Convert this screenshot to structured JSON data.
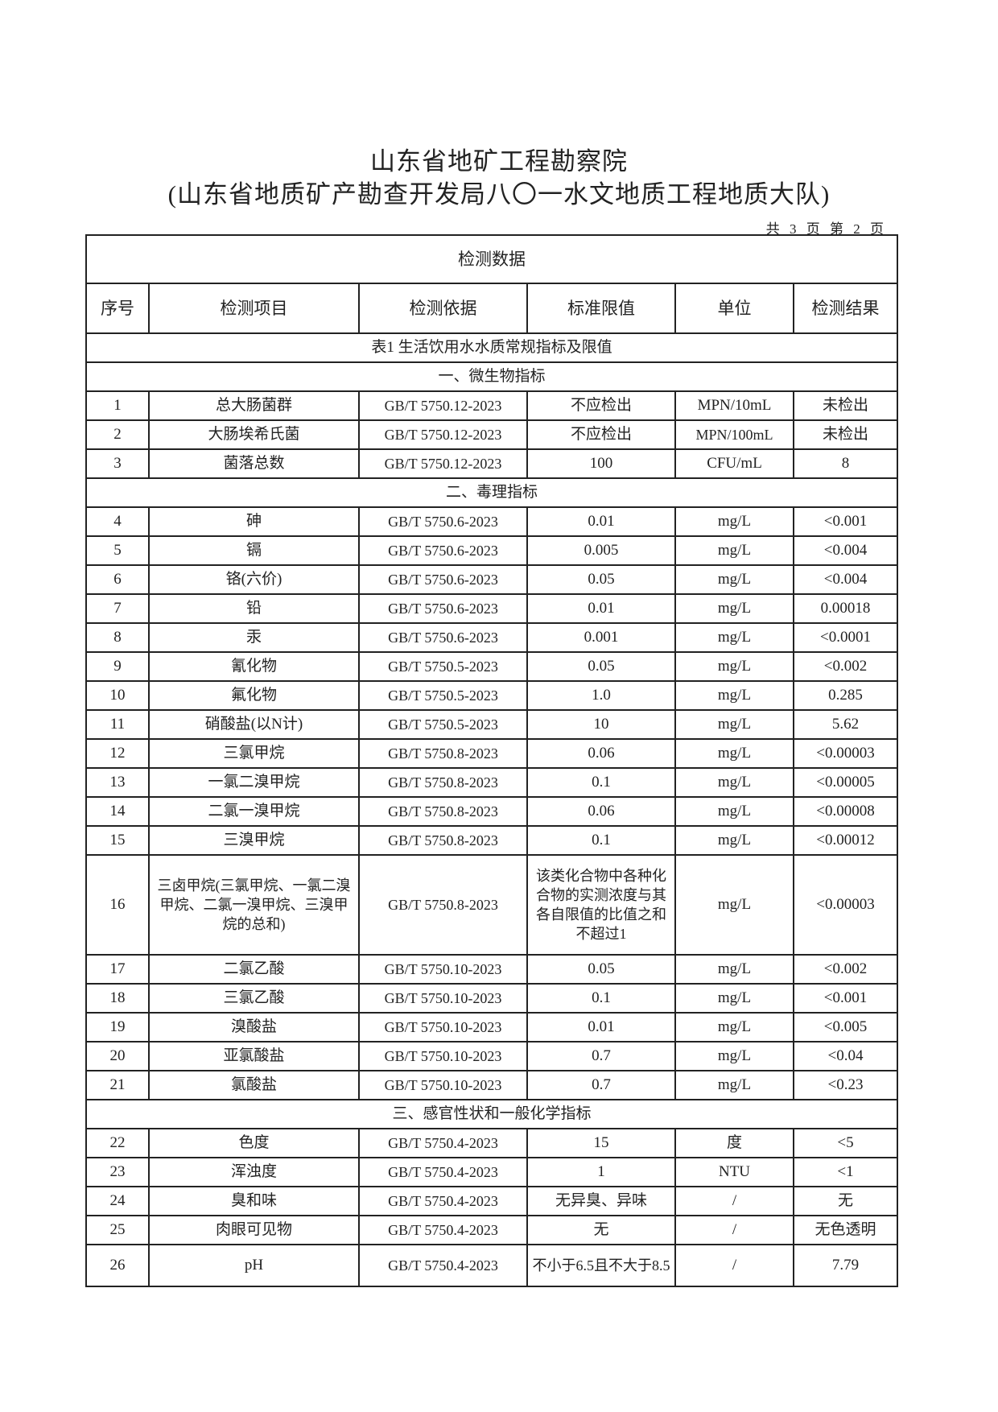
{
  "header": {
    "title": "山东省地矿工程勘察院",
    "subtitle": "(山东省地质矿产勘查开发局八〇一水文地质工程地质大队)",
    "page_info": "共 3 页 第 2 页"
  },
  "table": {
    "caption": "检测数据",
    "columns": [
      "序号",
      "检测项目",
      "检测依据",
      "标准限值",
      "单位",
      "检测结果"
    ],
    "table_title": "表1 生活饮用水水质常规指标及限值",
    "sections": [
      {
        "title": "一、微生物指标",
        "rows": [
          [
            "1",
            "总大肠菌群",
            "GB/T 5750.12-2023",
            "不应检出",
            "MPN/10mL",
            "未检出"
          ],
          [
            "2",
            "大肠埃希氏菌",
            "GB/T 5750.12-2023",
            "不应检出",
            "MPN/100mL",
            "未检出"
          ],
          [
            "3",
            "菌落总数",
            "GB/T 5750.12-2023",
            "100",
            "CFU/mL",
            "8"
          ]
        ]
      },
      {
        "title": "二、毒理指标",
        "rows": [
          [
            "4",
            "砷",
            "GB/T 5750.6-2023",
            "0.01",
            "mg/L",
            "<0.001"
          ],
          [
            "5",
            "镉",
            "GB/T 5750.6-2023",
            "0.005",
            "mg/L",
            "<0.004"
          ],
          [
            "6",
            "铬(六价)",
            "GB/T 5750.6-2023",
            "0.05",
            "mg/L",
            "<0.004"
          ],
          [
            "7",
            "铅",
            "GB/T 5750.6-2023",
            "0.01",
            "mg/L",
            "0.00018"
          ],
          [
            "8",
            "汞",
            "GB/T 5750.6-2023",
            "0.001",
            "mg/L",
            "<0.0001"
          ],
          [
            "9",
            "氰化物",
            "GB/T 5750.5-2023",
            "0.05",
            "mg/L",
            "<0.002"
          ],
          [
            "10",
            "氟化物",
            "GB/T 5750.5-2023",
            "1.0",
            "mg/L",
            "0.285"
          ],
          [
            "11",
            "硝酸盐(以N计)",
            "GB/T 5750.5-2023",
            "10",
            "mg/L",
            "5.62"
          ],
          [
            "12",
            "三氯甲烷",
            "GB/T 5750.8-2023",
            "0.06",
            "mg/L",
            "<0.00003"
          ],
          [
            "13",
            "一氯二溴甲烷",
            "GB/T 5750.8-2023",
            "0.1",
            "mg/L",
            "<0.00005"
          ],
          [
            "14",
            "二氯一溴甲烷",
            "GB/T 5750.8-2023",
            "0.06",
            "mg/L",
            "<0.00008"
          ],
          [
            "15",
            "三溴甲烷",
            "GB/T 5750.8-2023",
            "0.1",
            "mg/L",
            "<0.00012"
          ],
          [
            "16",
            "三卤甲烷(三氯甲烷、一氯二溴甲烷、二氯一溴甲烷、三溴甲烷的总和)",
            "GB/T 5750.8-2023",
            "该类化合物中各种化合物的实测浓度与其各自限值的比值之和不超过1",
            "mg/L",
            "<0.00003"
          ],
          [
            "17",
            "二氯乙酸",
            "GB/T 5750.10-2023",
            "0.05",
            "mg/L",
            "<0.002"
          ],
          [
            "18",
            "三氯乙酸",
            "GB/T 5750.10-2023",
            "0.1",
            "mg/L",
            "<0.001"
          ],
          [
            "19",
            "溴酸盐",
            "GB/T 5750.10-2023",
            "0.01",
            "mg/L",
            "<0.005"
          ],
          [
            "20",
            "亚氯酸盐",
            "GB/T 5750.10-2023",
            "0.7",
            "mg/L",
            "<0.04"
          ],
          [
            "21",
            "氯酸盐",
            "GB/T 5750.10-2023",
            "0.7",
            "mg/L",
            "<0.23"
          ]
        ]
      },
      {
        "title": "三、感官性状和一般化学指标",
        "rows": [
          [
            "22",
            "色度",
            "GB/T 5750.4-2023",
            "15",
            "度",
            "<5"
          ],
          [
            "23",
            "浑浊度",
            "GB/T 5750.4-2023",
            "1",
            "NTU",
            "<1"
          ],
          [
            "24",
            "臭和味",
            "GB/T 5750.4-2023",
            "无异臭、异味",
            "/",
            "无"
          ],
          [
            "25",
            "肉眼可见物",
            "GB/T 5750.4-2023",
            "无",
            "/",
            "无色透明"
          ],
          [
            "26",
            "pH",
            "GB/T 5750.4-2023",
            "不小于6.5且不大于8.5",
            "/",
            "7.79"
          ]
        ]
      }
    ]
  }
}
